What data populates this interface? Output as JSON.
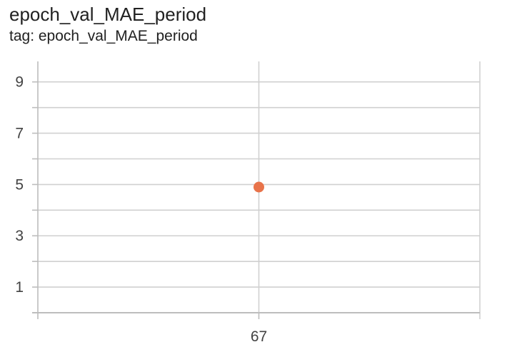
{
  "header": {
    "title": "epoch_val_MAE_period",
    "tag": "tag: epoch_val_MAE_period"
  },
  "colors": {
    "point": "#e8734a",
    "grid": "#d0d0d0",
    "axis": "#bdbdbd",
    "tick_text": "#424242"
  },
  "chart_data": {
    "type": "scatter",
    "title": "epoch_val_MAE_period",
    "subtitle": "tag: epoch_val_MAE_period",
    "xlabel": "",
    "ylabel": "",
    "x_ticks": [
      67
    ],
    "x_tick_labels": [
      "67"
    ],
    "y_ticks": [
      1,
      3,
      5,
      7,
      9
    ],
    "y_tick_labels": [
      "1",
      "3",
      "5",
      "7",
      "9"
    ],
    "y_minor_ticks": [
      0,
      2,
      4,
      6,
      8
    ],
    "xlim": [
      66,
      68
    ],
    "ylim": [
      0,
      9.8
    ],
    "grid": true,
    "series": [
      {
        "points": [
          {
            "x": 67,
            "y": 4.9
          }
        ]
      }
    ]
  }
}
